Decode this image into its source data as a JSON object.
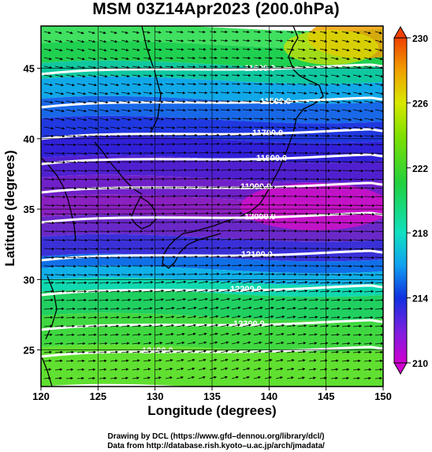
{
  "title": "MSM 03Z14Apr2023 (200.0hPa)",
  "xaxis": {
    "label": "Longitude (degrees)",
    "ticks": [
      "120",
      "125",
      "130",
      "135",
      "140",
      "145",
      "150"
    ]
  },
  "yaxis": {
    "label": "Latitude  (degrees)",
    "ticks": [
      "25",
      "30",
      "35",
      "40",
      "45"
    ]
  },
  "colorbar": {
    "ticks": [
      "210",
      "214",
      "218",
      "222",
      "226",
      "230"
    ]
  },
  "contours": [
    {
      "label": "11600.0"
    },
    {
      "label": "11500.0"
    },
    {
      "label": "11700.0"
    },
    {
      "label": "11800.0"
    },
    {
      "label": "11900.0"
    },
    {
      "label": "12000.0"
    },
    {
      "label": "12100.0"
    },
    {
      "label": "12200.0"
    },
    {
      "label": "12300.0"
    },
    {
      "label": "12400.0"
    }
  ],
  "credits": {
    "line1": "Drawing by DCL (https://www.gfd–dennou.org/library/dcl/)",
    "line2": "Data from http://database.rish.kyoto–u.ac.jp/arch/jmadata/"
  }
}
